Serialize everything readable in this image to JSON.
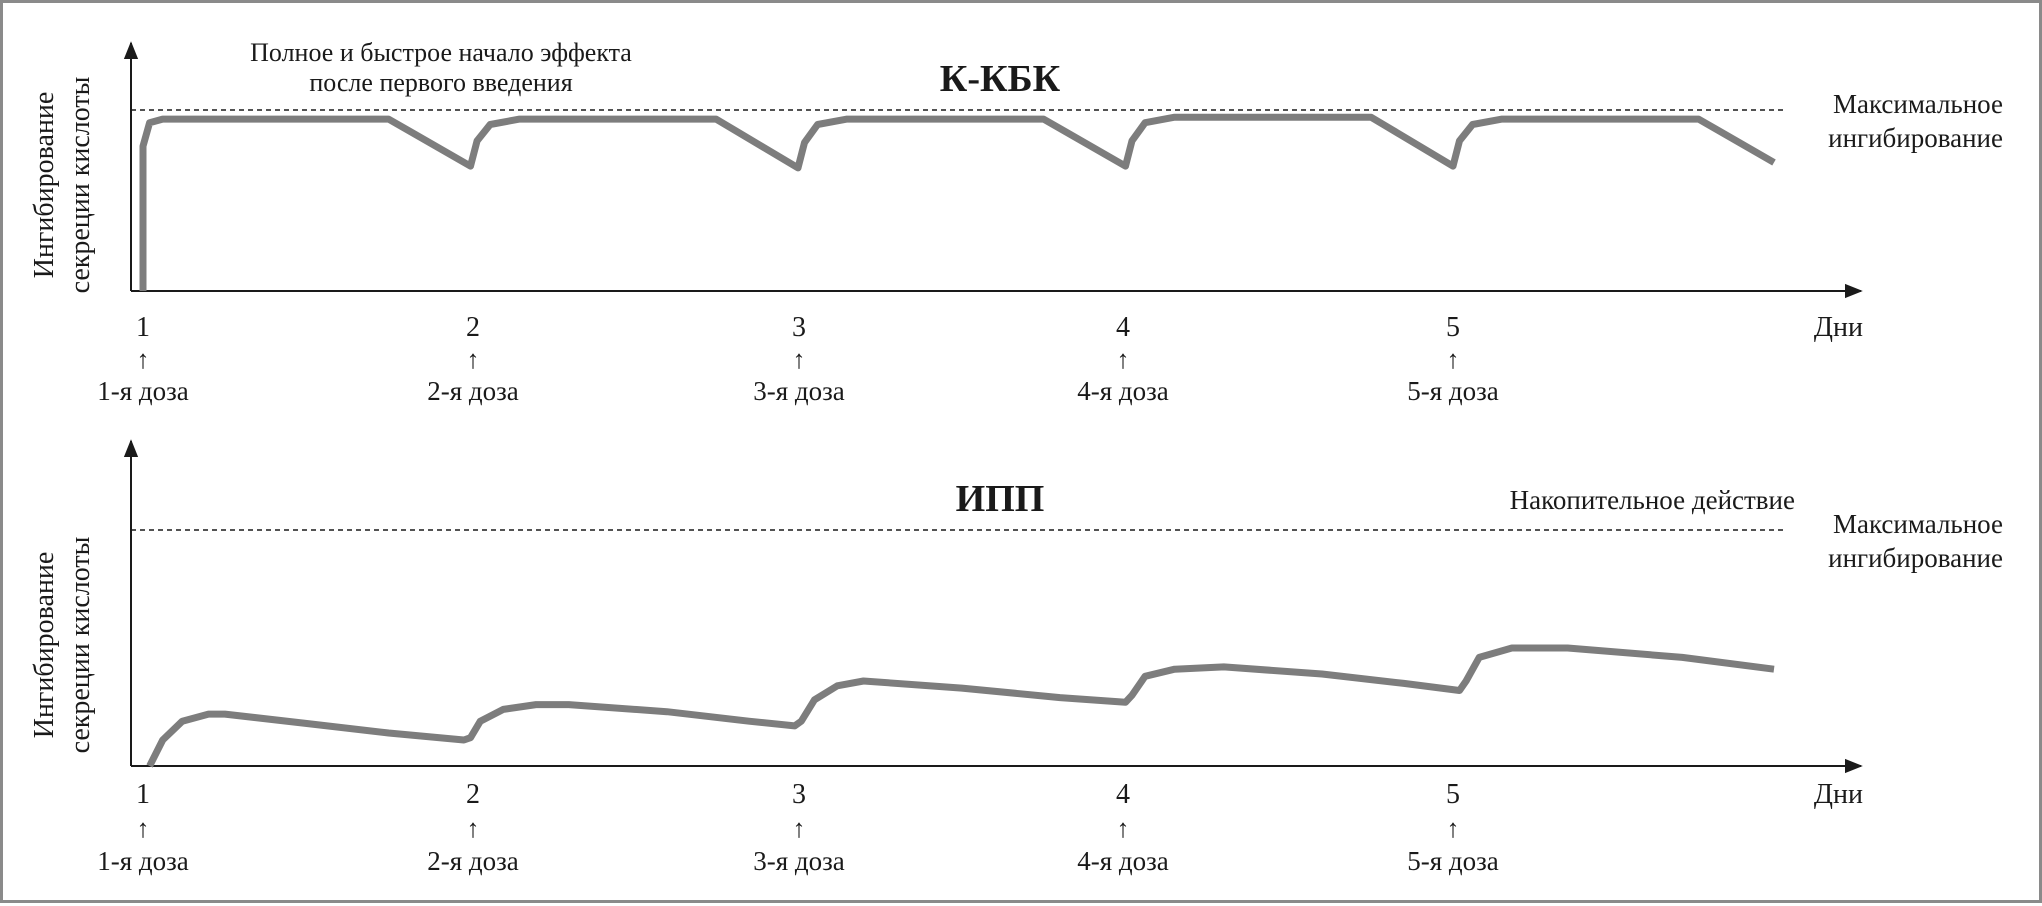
{
  "chart_data": [
    {
      "type": "line",
      "title": "К-КБК",
      "ylabel_lines": [
        "Ингибирование",
        "секреции кислоты"
      ],
      "xlabel": "Дни",
      "x_ticks": [
        "1",
        "2",
        "3",
        "4",
        "5"
      ],
      "dose_arrow": "↑",
      "dose_labels": [
        "1-я доза",
        "2-я доза",
        "3-я доза",
        "4-я доза",
        "5-я доза"
      ],
      "annotation_lines": [
        "Полное и быстрое начало эффекта",
        "после первого введения"
      ],
      "ref_line_label_lines": [
        "Максимальное",
        "ингибирование"
      ],
      "ref_level": 1.0,
      "ylim": [
        0,
        1.07
      ],
      "xlim": [
        0.98,
        6.0
      ],
      "series_color": "#7d7d7d",
      "points": [
        [
          1.0,
          0.0
        ],
        [
          1.0,
          0.8
        ],
        [
          1.02,
          0.93
        ],
        [
          1.06,
          0.95
        ],
        [
          1.15,
          0.95
        ],
        [
          1.75,
          0.95
        ],
        [
          2.0,
          0.69
        ],
        [
          2.02,
          0.83
        ],
        [
          2.06,
          0.92
        ],
        [
          2.15,
          0.95
        ],
        [
          2.75,
          0.95
        ],
        [
          3.0,
          0.68
        ],
        [
          3.02,
          0.82
        ],
        [
          3.06,
          0.92
        ],
        [
          3.15,
          0.95
        ],
        [
          3.75,
          0.95
        ],
        [
          4.0,
          0.69
        ],
        [
          4.02,
          0.83
        ],
        [
          4.06,
          0.93
        ],
        [
          4.15,
          0.96
        ],
        [
          4.75,
          0.96
        ],
        [
          5.0,
          0.69
        ],
        [
          5.02,
          0.83
        ],
        [
          5.06,
          0.92
        ],
        [
          5.15,
          0.95
        ],
        [
          5.75,
          0.95
        ],
        [
          5.98,
          0.71
        ]
      ]
    },
    {
      "type": "line",
      "title": "ИПП",
      "ylabel_lines": [
        "Ингибирование",
        "секреции кислоты"
      ],
      "xlabel": "Дни",
      "x_ticks": [
        "1",
        "2",
        "3",
        "4",
        "5"
      ],
      "dose_arrow": "↑",
      "dose_labels": [
        "1-я доза",
        "2-я доза",
        "3-я доза",
        "4-я доза",
        "5-я доза"
      ],
      "annotation_lines": [
        "Накопительное действие"
      ],
      "ref_line_label_lines": [
        "Максимальное",
        "ингибирование"
      ],
      "ref_level": 1.0,
      "ylim": [
        0,
        1.24
      ],
      "xlim": [
        0.98,
        6.0
      ],
      "series_color": "#7d7d7d",
      "points": [
        [
          1.02,
          0.0
        ],
        [
          1.06,
          0.11
        ],
        [
          1.12,
          0.19
        ],
        [
          1.2,
          0.22
        ],
        [
          1.25,
          0.22
        ],
        [
          1.5,
          0.18
        ],
        [
          1.75,
          0.14
        ],
        [
          1.98,
          0.11
        ],
        [
          2.0,
          0.12
        ],
        [
          2.03,
          0.19
        ],
        [
          2.1,
          0.24
        ],
        [
          2.2,
          0.26
        ],
        [
          2.3,
          0.26
        ],
        [
          2.6,
          0.23
        ],
        [
          2.85,
          0.19
        ],
        [
          2.99,
          0.17
        ],
        [
          3.01,
          0.19
        ],
        [
          3.05,
          0.28
        ],
        [
          3.12,
          0.34
        ],
        [
          3.2,
          0.36
        ],
        [
          3.5,
          0.33
        ],
        [
          3.8,
          0.29
        ],
        [
          4.0,
          0.27
        ],
        [
          4.02,
          0.3
        ],
        [
          4.06,
          0.38
        ],
        [
          4.15,
          0.41
        ],
        [
          4.3,
          0.42
        ],
        [
          4.6,
          0.39
        ],
        [
          4.85,
          0.35
        ],
        [
          5.02,
          0.32
        ],
        [
          5.04,
          0.36
        ],
        [
          5.08,
          0.46
        ],
        [
          5.18,
          0.5
        ],
        [
          5.35,
          0.5
        ],
        [
          5.7,
          0.46
        ],
        [
          5.98,
          0.41
        ]
      ]
    }
  ]
}
